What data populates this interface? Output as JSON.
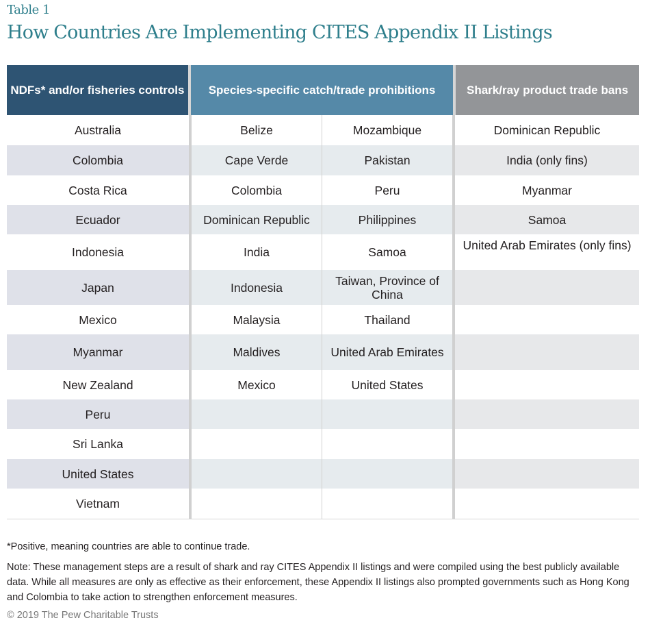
{
  "eyebrow": "Table 1",
  "title": "How Countries Are Implementing CITES Appendix II Listings",
  "headers": {
    "ndf": "NDFs* and/or fisheries controls",
    "species": "Species-specific catch/trade prohibitions",
    "bans": "Shark/ray product trade bans"
  },
  "rows": [
    [
      "Australia",
      "Belize",
      "Mozambique",
      "Dominican Republic"
    ],
    [
      "Colombia",
      "Cape Verde",
      "Pakistan",
      "India (only fins)"
    ],
    [
      "Costa Rica",
      "Colombia",
      "Peru",
      "Myanmar"
    ],
    [
      "Ecuador",
      "Dominican Republic",
      "Philippines",
      "Samoa"
    ],
    [
      "Indonesia",
      "India",
      "Samoa",
      "United Arab Emirates (only fins)"
    ],
    [
      "Japan",
      "Indonesia",
      "Taiwan, Province of China",
      ""
    ],
    [
      "Mexico",
      "Malaysia",
      "Thailand",
      ""
    ],
    [
      "Myanmar",
      "Maldives",
      "United Arab Emirates",
      ""
    ],
    [
      "New Zealand",
      "Mexico",
      "United States",
      ""
    ],
    [
      "Peru",
      "",
      "",
      ""
    ],
    [
      "Sri Lanka",
      "",
      "",
      ""
    ],
    [
      "United States",
      "",
      "",
      ""
    ],
    [
      "Vietnam",
      "",
      "",
      ""
    ]
  ],
  "footnote": "*Positive, meaning countries are able to continue trade.",
  "note": "Note: These management steps are a result of shark and ray CITES Appendix II listings and were compiled using the best publicly available data. While all measures are only as effective as their enforcement, these Appendix II listings also prompted governments such as Hong Kong and Colombia to take action to strengthen enforcement measures.",
  "copyright": "© 2019 The Pew Charitable Trusts"
}
